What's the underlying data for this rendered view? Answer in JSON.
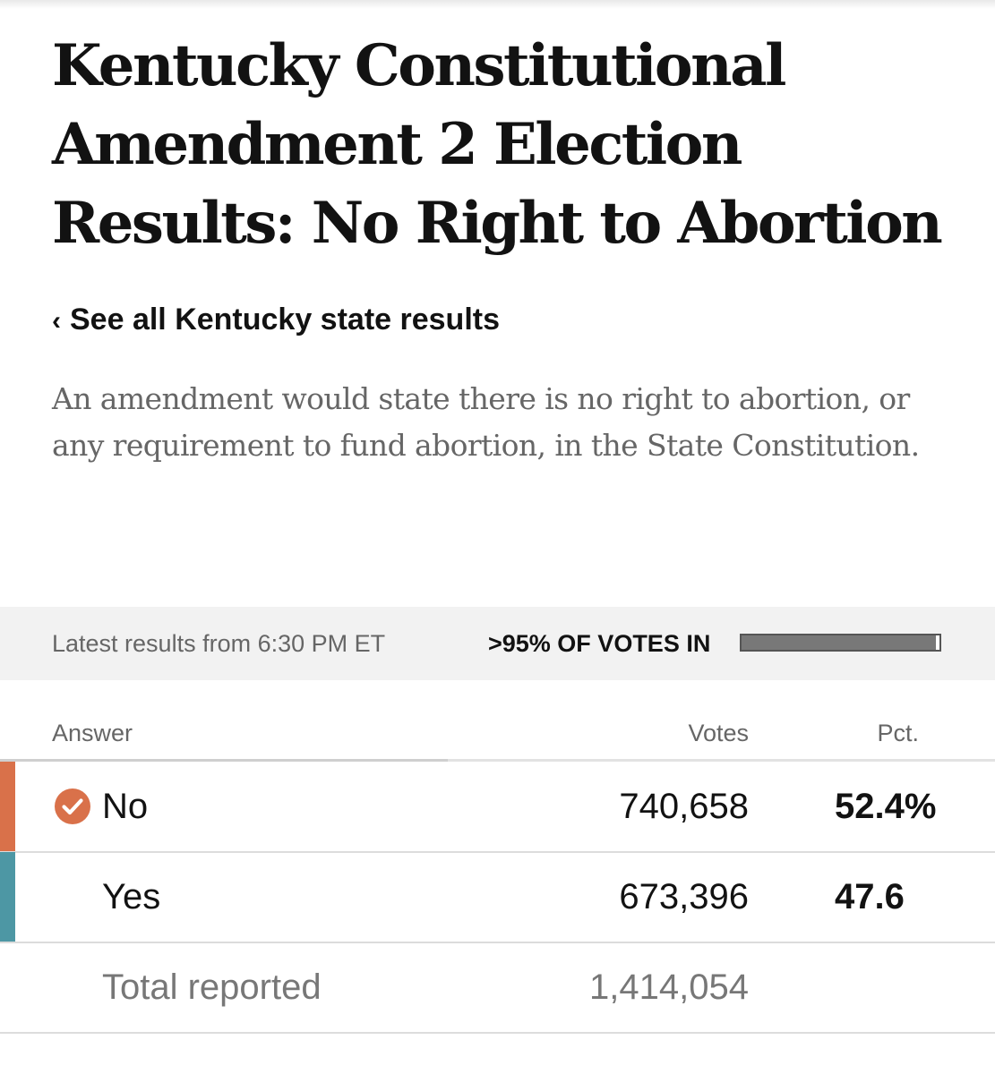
{
  "headline": "Kentucky Constitutional Amendment 2 Election Results: No Right to Abortion",
  "back_link": {
    "chevron": "‹",
    "label": "See all Kentucky state results"
  },
  "description": "An amendment would state there is no right to abortion, or any requirement to fund abortion, in the State Constitution.",
  "status": {
    "latest": "Latest results from 6:30 PM ET",
    "votes_in": ">95% OF VOTES IN",
    "reporting_fraction": 0.98
  },
  "table": {
    "headers": {
      "answer": "Answer",
      "votes": "Votes",
      "pct": "Pct."
    },
    "rows": [
      {
        "answer": "No",
        "votes": "740,658",
        "pct": "52.4%",
        "winner": true,
        "color": "#d9714a",
        "icon": "checkmark-circle-icon"
      },
      {
        "answer": "Yes",
        "votes": "673,396",
        "pct": "47.6",
        "winner": false,
        "color": "#4d97a4"
      }
    ],
    "total": {
      "label": "Total reported",
      "votes": "1,414,054"
    }
  },
  "colors": {
    "no": "#d9714a",
    "yes": "#4d97a4",
    "text": "#121212",
    "muted": "#666666"
  }
}
